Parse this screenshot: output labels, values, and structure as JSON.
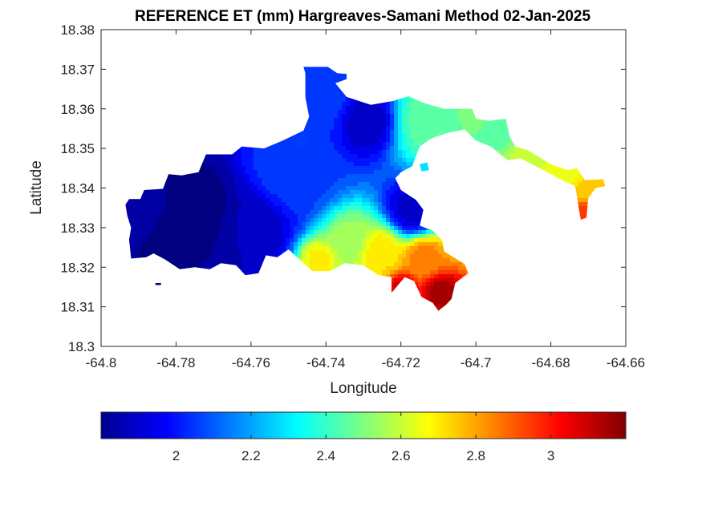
{
  "chart_data": {
    "type": "heatmap",
    "title": "REFERENCE ET (mm) Hargreaves-Samani Method  02-Jan-2025",
    "xlabel": "Longitude",
    "ylabel": "Latitude",
    "xlim": [
      -64.8,
      -64.66
    ],
    "ylim": [
      18.3,
      18.38
    ],
    "xticks": [
      "-64.8",
      "-64.78",
      "-64.76",
      "-64.74",
      "-64.72",
      "-64.7",
      "-64.68",
      "-64.66"
    ],
    "yticks": [
      "18.3",
      "18.31",
      "18.32",
      "18.33",
      "18.34",
      "18.35",
      "18.36",
      "18.37",
      "18.38"
    ],
    "colormap": "jet",
    "colorbar": {
      "location": "bottom",
      "range": [
        1.8,
        3.2
      ],
      "ticks": [
        "2",
        "2.2",
        "2.4",
        "2.6",
        "2.8",
        "3"
      ],
      "tick_values": [
        2.0,
        2.2,
        2.4,
        2.6,
        2.8,
        3.0
      ]
    },
    "grid": false,
    "land_outline": [
      [
        -64.7935,
        18.3358
      ],
      [
        -64.7925,
        18.3372
      ],
      [
        -64.7895,
        18.3372
      ],
      [
        -64.7885,
        18.3395
      ],
      [
        -64.7835,
        18.3398
      ],
      [
        -64.782,
        18.3435
      ],
      [
        -64.7785,
        18.3432
      ],
      [
        -64.774,
        18.344
      ],
      [
        -64.772,
        18.3485
      ],
      [
        -64.765,
        18.3485
      ],
      [
        -64.7625,
        18.3505
      ],
      [
        -64.7565,
        18.35
      ],
      [
        -64.7515,
        18.352
      ],
      [
        -64.746,
        18.3545
      ],
      [
        -64.7445,
        18.358
      ],
      [
        -64.7455,
        18.363
      ],
      [
        -64.7455,
        18.369
      ],
      [
        -64.746,
        18.3706
      ],
      [
        -64.7395,
        18.3706
      ],
      [
        -64.737,
        18.369
      ],
      [
        -64.7345,
        18.3688
      ],
      [
        -64.7345,
        18.3675
      ],
      [
        -64.7375,
        18.3665
      ],
      [
        -64.7345,
        18.363
      ],
      [
        -64.728,
        18.361
      ],
      [
        -64.722,
        18.362
      ],
      [
        -64.718,
        18.3632
      ],
      [
        -64.714,
        18.3615
      ],
      [
        -64.7085,
        18.36
      ],
      [
        -64.701,
        18.36
      ],
      [
        -64.7,
        18.3575
      ],
      [
        -64.6965,
        18.357
      ],
      [
        -64.692,
        18.3575
      ],
      [
        -64.691,
        18.353
      ],
      [
        -64.6895,
        18.3505
      ],
      [
        -64.686,
        18.3495
      ],
      [
        -64.68,
        18.346
      ],
      [
        -64.6755,
        18.3445
      ],
      [
        -64.673,
        18.345
      ],
      [
        -64.671,
        18.342
      ],
      [
        -64.666,
        18.3422
      ],
      [
        -64.6655,
        18.3405
      ],
      [
        -64.668,
        18.34
      ],
      [
        -64.67,
        18.3375
      ],
      [
        -64.6705,
        18.3325
      ],
      [
        -64.672,
        18.332
      ],
      [
        -64.673,
        18.3375
      ],
      [
        -64.6735,
        18.3405
      ],
      [
        -64.677,
        18.342
      ],
      [
        -64.683,
        18.345
      ],
      [
        -64.688,
        18.3475
      ],
      [
        -64.6915,
        18.347
      ],
      [
        -64.696,
        18.3505
      ],
      [
        -64.7,
        18.352
      ],
      [
        -64.703,
        18.3548
      ],
      [
        -64.708,
        18.3538
      ],
      [
        -64.712,
        18.3525
      ],
      [
        -64.715,
        18.3505
      ],
      [
        -64.717,
        18.3455
      ],
      [
        -64.72,
        18.344
      ],
      [
        -64.7215,
        18.3425
      ],
      [
        -64.72,
        18.3395
      ],
      [
        -64.716,
        18.337
      ],
      [
        -64.714,
        18.3345
      ],
      [
        -64.715,
        18.3305
      ],
      [
        -64.7115,
        18.3292
      ],
      [
        -64.709,
        18.3268
      ],
      [
        -64.7085,
        18.324
      ],
      [
        -64.703,
        18.3208
      ],
      [
        -64.702,
        18.3185
      ],
      [
        -64.7055,
        18.316
      ],
      [
        -64.7065,
        18.312
      ],
      [
        -64.708,
        18.3105
      ],
      [
        -64.71,
        18.309
      ],
      [
        -64.7115,
        18.311
      ],
      [
        -64.7145,
        18.3125
      ],
      [
        -64.7165,
        18.3165
      ],
      [
        -64.719,
        18.3175
      ],
      [
        -64.7225,
        18.3135
      ],
      [
        -64.7225,
        18.3175
      ],
      [
        -64.726,
        18.318
      ],
      [
        -64.73,
        18.3205
      ],
      [
        -64.735,
        18.321
      ],
      [
        -64.739,
        18.319
      ],
      [
        -64.7435,
        18.319
      ],
      [
        -64.746,
        18.321
      ],
      [
        -64.75,
        18.3245
      ],
      [
        -64.753,
        18.3225
      ],
      [
        -64.756,
        18.323
      ],
      [
        -64.758,
        18.3185
      ],
      [
        -64.7615,
        18.318
      ],
      [
        -64.764,
        18.3205
      ],
      [
        -64.768,
        18.321
      ],
      [
        -64.771,
        18.3195
      ],
      [
        -64.775,
        18.32
      ],
      [
        -64.779,
        18.3195
      ],
      [
        -64.783,
        18.322
      ],
      [
        -64.786,
        18.3235
      ],
      [
        -64.788,
        18.3225
      ],
      [
        -64.792,
        18.3222
      ],
      [
        -64.7925,
        18.327
      ],
      [
        -64.792,
        18.33
      ],
      [
        -64.793,
        18.333
      ]
    ],
    "field_centers": [
      {
        "lon": -64.774,
        "lat": 18.3345,
        "value": 1.8,
        "spread": 0.0095
      },
      {
        "lon": -64.788,
        "lat": 18.337,
        "value": 1.84,
        "spread": 0.006
      },
      {
        "lon": -64.76,
        "lat": 18.331,
        "value": 1.88,
        "spread": 0.008
      },
      {
        "lon": -64.729,
        "lat": 18.357,
        "value": 1.88,
        "spread": 0.006
      },
      {
        "lon": -64.717,
        "lat": 18.334,
        "value": 1.9,
        "spread": 0.0055
      },
      {
        "lon": -64.742,
        "lat": 18.363,
        "value": 2.05,
        "spread": 0.008
      },
      {
        "lon": -64.75,
        "lat": 18.344,
        "value": 2.06,
        "spread": 0.009
      },
      {
        "lon": -64.713,
        "lat": 18.357,
        "value": 2.45,
        "spread": 0.007
      },
      {
        "lon": -64.701,
        "lat": 18.358,
        "value": 2.48,
        "spread": 0.005
      },
      {
        "lon": -64.693,
        "lat": 18.356,
        "value": 2.45,
        "spread": 0.004
      },
      {
        "lon": -64.685,
        "lat": 18.348,
        "value": 2.62,
        "spread": 0.004
      },
      {
        "lon": -64.676,
        "lat": 18.344,
        "value": 2.66,
        "spread": 0.004
      },
      {
        "lon": -64.671,
        "lat": 18.3395,
        "value": 2.75,
        "spread": 0.003
      },
      {
        "lon": -64.6715,
        "lat": 18.334,
        "value": 2.95,
        "spread": 0.0025
      },
      {
        "lon": -64.734,
        "lat": 18.327,
        "value": 2.55,
        "spread": 0.005
      },
      {
        "lon": -64.725,
        "lat": 18.324,
        "value": 2.72,
        "spread": 0.005
      },
      {
        "lon": -64.714,
        "lat": 18.3225,
        "value": 2.85,
        "spread": 0.005
      },
      {
        "lon": -64.7095,
        "lat": 18.314,
        "value": 3.15,
        "spread": 0.0035
      },
      {
        "lon": -64.7195,
        "lat": 18.315,
        "value": 3.1,
        "spread": 0.003
      },
      {
        "lon": -64.742,
        "lat": 18.322,
        "value": 2.7,
        "spread": 0.004
      }
    ],
    "islets": [
      [
        [
          -64.7485,
          18.352
        ],
        [
          -64.746,
          18.3535
        ],
        [
          -64.745,
          18.351
        ],
        [
          -64.747,
          18.35
        ]
      ],
      [
        [
          -64.792,
          18.3245
        ],
        [
          -64.7905,
          18.325
        ],
        [
          -64.79,
          18.3235
        ],
        [
          -64.7915,
          18.3232
        ]
      ],
      [
        [
          -64.7855,
          18.316
        ],
        [
          -64.784,
          18.316
        ],
        [
          -64.784,
          18.3155
        ],
        [
          -64.7855,
          18.3155
        ]
      ],
      [
        [
          -64.715,
          18.346
        ],
        [
          -64.713,
          18.3465
        ],
        [
          -64.7125,
          18.3445
        ],
        [
          -64.7145,
          18.3442
        ]
      ],
      [
        [
          -64.682,
          18.3458
        ],
        [
          -64.681,
          18.3462
        ],
        [
          -64.6808,
          18.3452
        ],
        [
          -64.6818,
          18.345
        ]
      ]
    ]
  }
}
